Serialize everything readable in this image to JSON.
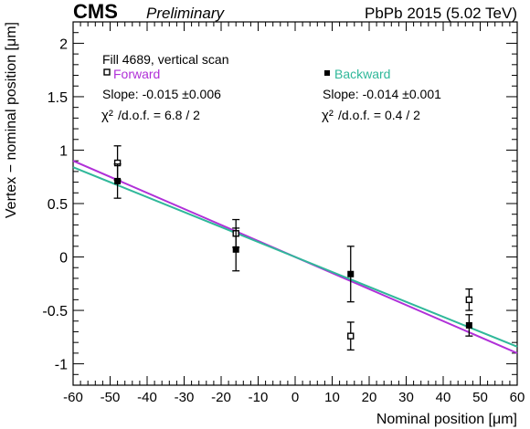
{
  "chart_data": {
    "type": "scatter",
    "header": {
      "experiment": "CMS",
      "status": "Preliminary",
      "dataset": "PbPb 2015 (5.02 TeV)"
    },
    "annotation": "Fill 4689, vertical scan",
    "xlabel": "Nominal position [μm]",
    "ylabel": "Vertex − nominal position [μm]",
    "xlim": [
      -60,
      60
    ],
    "ylim": [
      -1.2,
      2.2
    ],
    "xticks": [
      "-60",
      "-50",
      "-40",
      "-30",
      "-20",
      "-10",
      "0",
      "10",
      "20",
      "30",
      "40",
      "50",
      "60"
    ],
    "yticks": [
      "-1",
      "-0.5",
      "0",
      "0.5",
      "1",
      "1.5",
      "2"
    ],
    "grid": false,
    "series": [
      {
        "name": "Forward",
        "marker": "open-square",
        "color": "#000000",
        "fit_color": "#b030d8",
        "slope_text": "Slope: -0.015 ±0.006",
        "chi2_text": "/d.o.f. = 6.8 / 2",
        "slope": -0.015,
        "points": [
          {
            "x": -48,
            "y": 0.88,
            "err": 0.16
          },
          {
            "x": -16,
            "y": 0.22,
            "err": 0.13
          },
          {
            "x": 15,
            "y": -0.74,
            "err": 0.13
          },
          {
            "x": 47,
            "y": -0.4,
            "err": 0.1
          }
        ]
      },
      {
        "name": "Backward",
        "marker": "filled-square",
        "color": "#000000",
        "fit_color": "#30b89a",
        "slope_text": "Slope: -0.014 ±0.001",
        "chi2_text": "/d.o.f. = 0.4 / 2",
        "slope": -0.014,
        "points": [
          {
            "x": -48,
            "y": 0.71,
            "err": 0.16
          },
          {
            "x": -16,
            "y": 0.07,
            "err": 0.2
          },
          {
            "x": 15,
            "y": -0.16,
            "err": 0.26
          },
          {
            "x": 47,
            "y": -0.64,
            "err": 0.1
          }
        ]
      }
    ]
  }
}
